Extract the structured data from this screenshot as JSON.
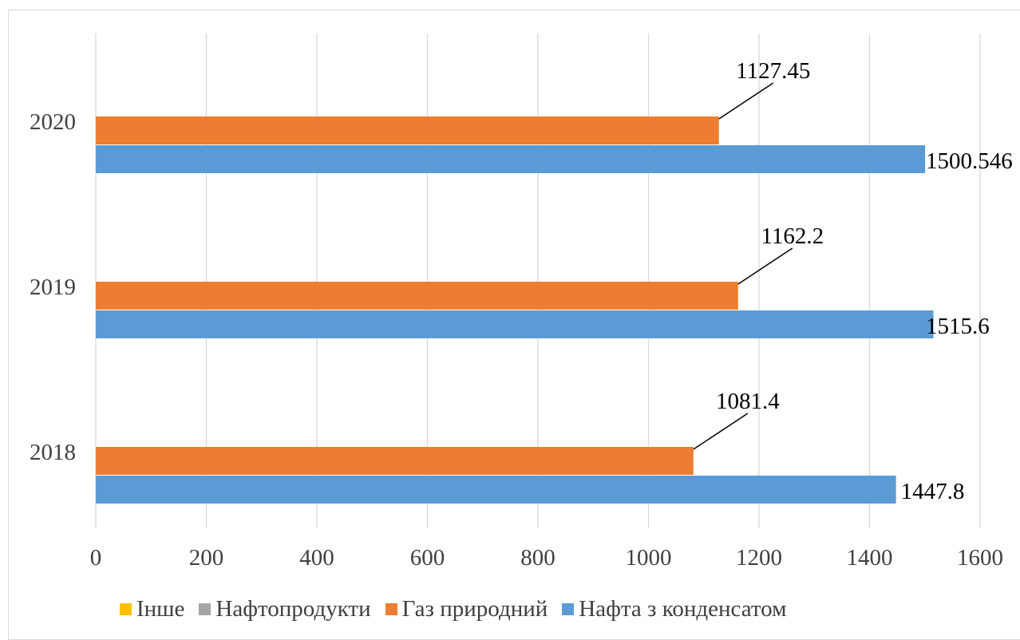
{
  "chart_data": {
    "type": "bar",
    "orientation": "horizontal",
    "categories": [
      "2018",
      "2019",
      "2020"
    ],
    "series": [
      {
        "name": "Нафта з конденсатом",
        "color": "#5b9bd5",
        "values": [
          1447.8,
          1515.6,
          1500.546
        ],
        "labels": [
          "1447.8",
          "1515.6",
          "1500.546"
        ]
      },
      {
        "name": "Газ природний",
        "color": "#ed7d31",
        "values": [
          1081.4,
          1162.2,
          1127.45
        ],
        "labels": [
          "1081.4",
          "1162.2",
          "1127.45"
        ]
      },
      {
        "name": "Нафтопродукти",
        "color": "#a5a5a5",
        "values": [
          0,
          0,
          0
        ],
        "labels": []
      },
      {
        "name": "Інше",
        "color": "#ffc000",
        "values": [
          0,
          0,
          0
        ],
        "labels": []
      }
    ],
    "xlim": [
      0,
      1600
    ],
    "xticks": [
      0,
      200,
      400,
      600,
      800,
      1000,
      1200,
      1400,
      1600
    ],
    "grid": true,
    "legend_position": "bottom",
    "legend_order": [
      "Інше",
      "Нафтопродукти",
      "Газ природний",
      "Нафта з конденсатом"
    ],
    "title": "",
    "xlabel": "",
    "ylabel": ""
  }
}
